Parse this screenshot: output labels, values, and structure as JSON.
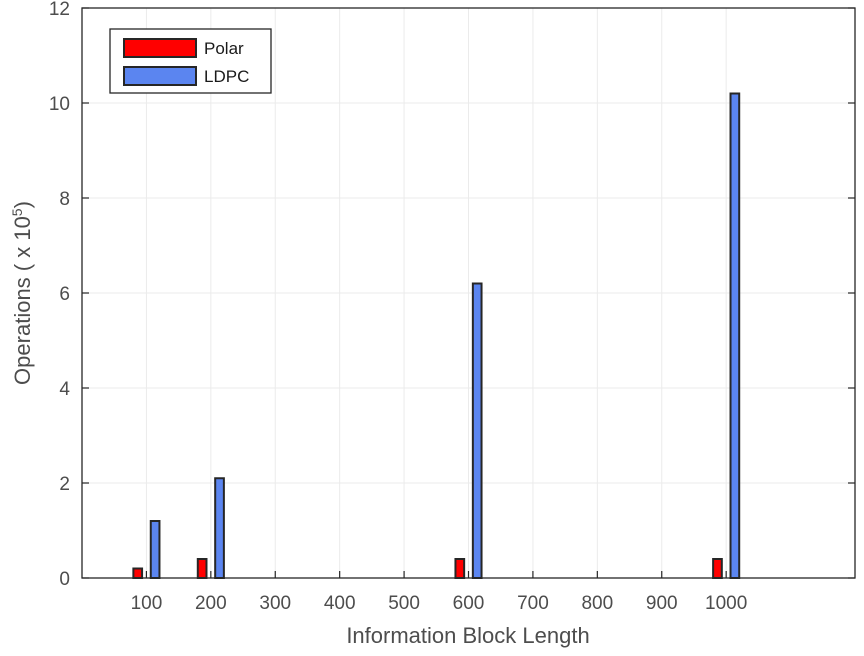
{
  "chart_data": {
    "type": "bar",
    "x_ticks": [
      "100",
      "200",
      "300",
      "400",
      "500",
      "600",
      "700",
      "800",
      "900",
      "1000"
    ],
    "x_range": [
      0,
      1200
    ],
    "categories": [
      100,
      200,
      600,
      1000
    ],
    "series": [
      {
        "name": "Polar",
        "values": [
          0.2,
          0.4,
          0.4,
          0.4
        ],
        "color": "#ff0000"
      },
      {
        "name": "LDPC",
        "values": [
          1.2,
          2.1,
          6.2,
          10.2
        ],
        "color": "#5b85f0"
      }
    ],
    "xlabel": "Information Block Length",
    "ylabel": {
      "prefix": "Operations ( x 10",
      "exponent": "5",
      "suffix": ")"
    },
    "ylim": [
      0,
      12
    ],
    "y_ticks": [
      "0",
      "2",
      "4",
      "6",
      "8",
      "10",
      "12"
    ],
    "grid": true,
    "legend_position": "top-left"
  }
}
